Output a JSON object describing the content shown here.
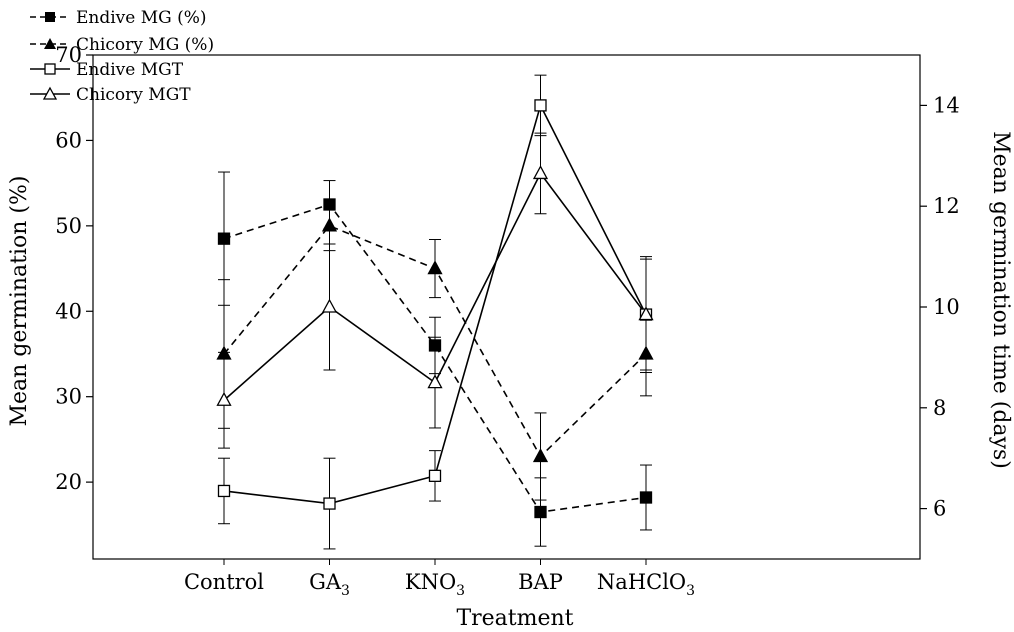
{
  "chart_data": {
    "type": "line",
    "title": "",
    "xlabel": "Treatment",
    "ylabel_left": "Mean germination (%)",
    "ylabel_right": "Mean germination time (days)",
    "categories": [
      {
        "base": "Control",
        "sub": ""
      },
      {
        "base": "GA",
        "sub": "3"
      },
      {
        "base": "KNO",
        "sub": "3"
      },
      {
        "base": "BAP",
        "sub": ""
      },
      {
        "base": "NaHClO",
        "sub": "3"
      }
    ],
    "left_axis": {
      "min": 11,
      "max": 70,
      "ticks": [
        20,
        30,
        40,
        50,
        60,
        70
      ]
    },
    "right_axis": {
      "min": 5,
      "max": 15,
      "ticks": [
        6,
        8,
        10,
        12,
        14
      ]
    },
    "grid": false,
    "legend": {
      "position": "top-left"
    },
    "series": [
      {
        "name": "Endive MG (%)",
        "axis": "left",
        "line_style": "dashed",
        "marker": "filled-square",
        "values": [
          48.5,
          52.5,
          36,
          16.5,
          18.2
        ],
        "error": [
          7.8,
          2.8,
          3.3,
          4,
          3.8
        ]
      },
      {
        "name": "Chicory MG (%)",
        "axis": "left",
        "line_style": "dashed",
        "marker": "filled-triangle",
        "values": [
          35,
          50,
          45,
          23,
          35
        ],
        "error": [
          8.7,
          2.9,
          3.4,
          5.1,
          4.9
        ]
      },
      {
        "name": "Endive MGT",
        "axis": "right",
        "line_style": "solid",
        "marker": "open-square",
        "values": [
          6.35,
          6.1,
          6.65,
          14,
          9.85
        ],
        "error": [
          0.65,
          0.9,
          0.5,
          0.6,
          1.15
        ]
      },
      {
        "name": "Chicory MGT",
        "axis": "right",
        "line_style": "solid",
        "marker": "open-triangle",
        "values": [
          8.15,
          10,
          8.5,
          12.65,
          9.85
        ],
        "error": [
          0.95,
          1.25,
          0.9,
          0.8,
          1.1
        ]
      }
    ]
  }
}
